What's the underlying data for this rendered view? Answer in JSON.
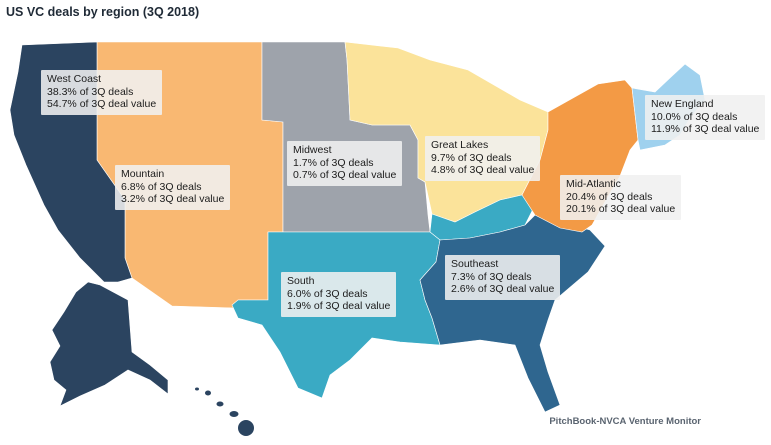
{
  "title": "US VC deals by region (3Q 2018)",
  "source": "PitchBook-NVCA Venture Monitor",
  "colors": {
    "west_coast": "#2b4460",
    "mountain": "#f9b872",
    "midwest": "#9ea3ab",
    "great_lakes": "#fbe39a",
    "new_england": "#9fd1ee",
    "mid_atlantic": "#f39a45",
    "south": "#3aaac4",
    "southeast": "#2f668f",
    "kentucky_tn": "#3aaac4"
  },
  "regions": [
    {
      "key": "west_coast",
      "name": "West Coast",
      "deals": "38.3% of 3Q deals",
      "value": "54.7% of 3Q deal value"
    },
    {
      "key": "mountain",
      "name": "Mountain",
      "deals": "6.8% of 3Q deals",
      "value": "3.2% of 3Q deal value"
    },
    {
      "key": "midwest",
      "name": "Midwest",
      "deals": "1.7% of 3Q deals",
      "value": "0.7% of 3Q deal value"
    },
    {
      "key": "great_lakes",
      "name": "Great Lakes",
      "deals": "9.7% of 3Q deals",
      "value": "4.8% of 3Q deal value"
    },
    {
      "key": "new_england",
      "name": "New England",
      "deals": "10.0% of 3Q deals",
      "value": "11.9% of 3Q deal value"
    },
    {
      "key": "mid_atlantic",
      "name": "Mid-Atlantic",
      "deals": "20.4% of 3Q deals",
      "value": "20.1% of 3Q deal value"
    },
    {
      "key": "south",
      "name": "South",
      "deals": "6.0% of 3Q deals",
      "value": "1.9% of 3Q deal value"
    },
    {
      "key": "southeast",
      "name": "Southeast",
      "deals": "7.3% of 3Q deals",
      "value": "2.6% of 3Q deal value"
    }
  ]
}
